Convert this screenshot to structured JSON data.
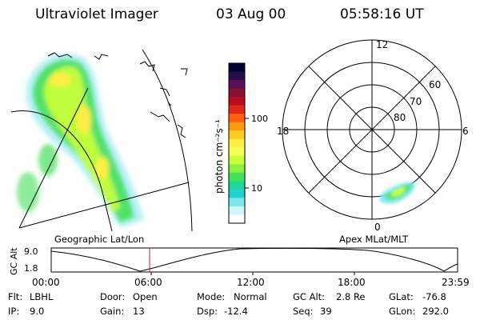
{
  "header": {
    "instrument": "Ultraviolet Imager",
    "date": "03 Aug 00",
    "time": "05:58:16 UT"
  },
  "left_panel": {
    "caption": "Geographic Lat/Lon"
  },
  "right_panel": {
    "caption": "Apex MLat/MLT",
    "mlt_labels": {
      "top": "12",
      "left": "18",
      "right": "6",
      "bottom": "0"
    },
    "lat_labels": [
      "60",
      "70",
      "80"
    ]
  },
  "colorbar": {
    "label": "photon cm⁻²s⁻¹",
    "ticks": [
      "100",
      "10"
    ],
    "colors": [
      "#000033",
      "#2b0a4a",
      "#5a0f55",
      "#8a0f35",
      "#b80f1e",
      "#e0281a",
      "#ff6010",
      "#ff9a10",
      "#ffcc22",
      "#ffee44",
      "#f4ff55",
      "#c6ff3a",
      "#8cf040",
      "#45e05a",
      "#20d69a",
      "#22d2d2",
      "#7fe6ec",
      "#d2f4f8",
      "#ffffff"
    ]
  },
  "altitude_strip": {
    "axis_label": "GC Alt",
    "y_ticks": [
      "9.0",
      "1.8"
    ],
    "x_ticks": [
      "00:00",
      "06:00",
      "12:00",
      "18:00",
      "23:59"
    ],
    "marker_color": "#b02020"
  },
  "footer": {
    "row1": [
      {
        "key": "Flt:",
        "value": "LBHL"
      },
      {
        "key": "Door:",
        "value": "Open"
      },
      {
        "key": "Mode:",
        "value": "Normal"
      },
      {
        "key": "GC Alt:",
        "value": "2.8 Re"
      },
      {
        "key": "GLat:",
        "value": "-76.8"
      }
    ],
    "row2": [
      {
        "key": "IP:",
        "value": "9.0"
      },
      {
        "key": "Gain:",
        "value": "13"
      },
      {
        "key": "Dsp:",
        "value": "-12.4"
      },
      {
        "key": "Seq:",
        "value": "39"
      },
      {
        "key": "GLon:",
        "value": "292.0"
      }
    ]
  }
}
